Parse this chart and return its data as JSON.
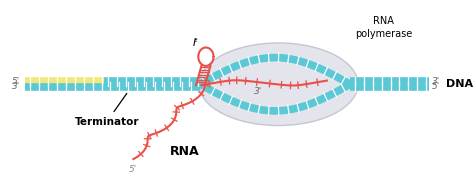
{
  "bg_color": "#ffffff",
  "dna_color": "#5bc8d5",
  "dna_yellow_color": "#f0e87a",
  "rna_color": "#e8504a",
  "poly_fill": "#dcdce8",
  "poly_edge": "#b8b8c8",
  "label_5prime_lt": "5'",
  "label_3prime_lb": "3'",
  "label_3prime_rt": "3'",
  "label_5prime_rb": "5'",
  "label_dna": "DNA",
  "label_rna": "RNA",
  "label_terminator": "Terminator",
  "label_poly1": "RNA",
  "label_poly2": "polymerase",
  "label_it": "Iᵗ",
  "label_3prime_inner": "3'",
  "label_5prime_rna": "5'",
  "figsize": [
    4.74,
    1.85
  ],
  "dpi": 100
}
